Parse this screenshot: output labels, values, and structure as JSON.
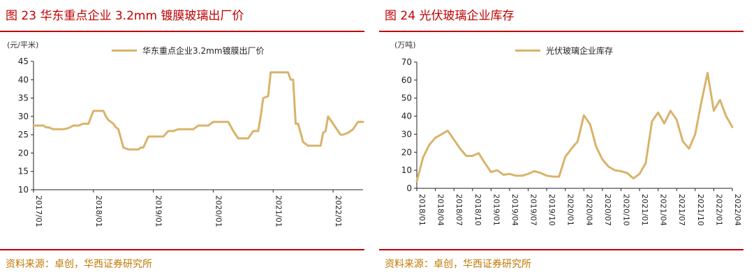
{
  "left": {
    "title": "图 23  华东重点企业 3.2mm 镀膜玻璃出厂价",
    "unit": "(元/平米)",
    "legend": "华东重点企业3.2mm镀膜出厂价",
    "source": "资料来源：卓创，华西证券研究所"
  },
  "right": {
    "title": "图 24  光伏玻璃企业库存",
    "unit": "(万吨)",
    "legend": "光伏玻璃企业库存",
    "source": "资料来源：卓创，华西证券研究所"
  },
  "colors": {
    "accent": "#c00000",
    "line": "#d9b36a",
    "source": "#c07800"
  },
  "chart_data": [
    {
      "type": "line",
      "title": "华东重点企业 3.2mm 镀膜玻璃出厂价",
      "ylabel": "(元/平米)",
      "ylim": [
        10,
        45
      ],
      "yticks": [
        10,
        15,
        20,
        25,
        30,
        35,
        40,
        45
      ],
      "xlim": [
        0,
        66
      ],
      "x_ticks": [
        "2017/01",
        "2018/01",
        "2019/01",
        "2020/01",
        "2021/01",
        "2022/01"
      ],
      "x_tick_positions": [
        0,
        12,
        24,
        36,
        48,
        60
      ],
      "series": [
        {
          "name": "华东重点企业3.2mm镀膜出厂价",
          "x": [
            0,
            1,
            2,
            2.5,
            3,
            4,
            5,
            6,
            7,
            8,
            9,
            10,
            11,
            12,
            13,
            14,
            14.5,
            15,
            16,
            16.5,
            17,
            17.5,
            18,
            19,
            20,
            21,
            21.5,
            22,
            23,
            24,
            25,
            26,
            27,
            28,
            29,
            30,
            31,
            32,
            33,
            34,
            35,
            36,
            37,
            38,
            39,
            40,
            41,
            42,
            42.5,
            43,
            44,
            45,
            45.5,
            46,
            47,
            47.5,
            48,
            49,
            50,
            51,
            51.5,
            52,
            52.5,
            53,
            54,
            55,
            56,
            57,
            57.5,
            58,
            58.5,
            59,
            60,
            61,
            61.5,
            62,
            63,
            64,
            65,
            66
          ],
          "y": [
            27.5,
            27.5,
            27.5,
            27,
            27,
            26.5,
            26.5,
            26.5,
            26.8,
            27.5,
            27.5,
            28,
            28,
            31.5,
            31.5,
            31.5,
            30,
            29,
            28,
            27,
            26.5,
            24,
            21.5,
            21,
            21,
            21,
            21.5,
            21.5,
            24.5,
            24.5,
            24.5,
            24.5,
            26,
            26,
            26.5,
            26.5,
            26.5,
            26.5,
            27.5,
            27.5,
            27.5,
            28.5,
            28.5,
            28.5,
            28.5,
            26,
            24,
            24,
            24,
            24,
            26,
            26,
            30,
            35,
            35.5,
            42,
            42,
            42,
            42,
            42,
            40,
            40,
            28,
            28,
            23,
            22,
            22,
            22,
            22,
            25.5,
            26,
            30,
            28,
            26,
            25,
            25,
            25.5,
            26.5,
            28.5,
            28.5
          ]
        }
      ]
    },
    {
      "type": "line",
      "title": "光伏玻璃企业库存",
      "ylabel": "(万吨)",
      "ylim": [
        0,
        70
      ],
      "yticks": [
        0,
        10,
        20,
        30,
        40,
        50,
        60,
        70
      ],
      "xlim": [
        0,
        51
      ],
      "x_ticks": [
        "2018/01",
        "2018/04",
        "2018/07",
        "2018/10",
        "2019/01",
        "2019/04",
        "2019/07",
        "2019/10",
        "2020/01",
        "2020/04",
        "2020/07",
        "2020/10",
        "2021/01",
        "2021/04",
        "2021/07",
        "2021/10",
        "2022/01",
        "2022/04"
      ],
      "x_tick_positions": [
        0,
        3,
        6,
        9,
        12,
        15,
        18,
        21,
        24,
        27,
        30,
        33,
        36,
        39,
        42,
        45,
        48,
        51
      ],
      "series": [
        {
          "name": "光伏玻璃企业库存",
          "x": [
            0,
            1,
            2,
            3,
            4,
            5,
            6,
            7,
            8,
            9,
            10,
            11,
            12,
            13,
            14,
            15,
            16,
            17,
            18,
            19,
            20,
            21,
            22,
            23,
            24,
            25,
            26,
            27,
            28,
            29,
            30,
            31,
            32,
            33,
            34,
            35,
            36,
            37,
            38,
            39,
            40,
            41,
            42,
            43,
            44,
            45,
            46,
            47,
            48,
            49,
            50,
            51
          ],
          "y": [
            4,
            17,
            24,
            28,
            30,
            32,
            27,
            22,
            18,
            18,
            19.5,
            14,
            9,
            10,
            7.5,
            8,
            7,
            7,
            8,
            9.5,
            8.5,
            7,
            6.5,
            6.5,
            17.5,
            22,
            26,
            40.5,
            35.5,
            23,
            16,
            12,
            10,
            9.5,
            8.5,
            5.5,
            8,
            14,
            37,
            42,
            36,
            43,
            38,
            26,
            22,
            30,
            48,
            64,
            43,
            49,
            40,
            34
          ]
        }
      ]
    }
  ]
}
